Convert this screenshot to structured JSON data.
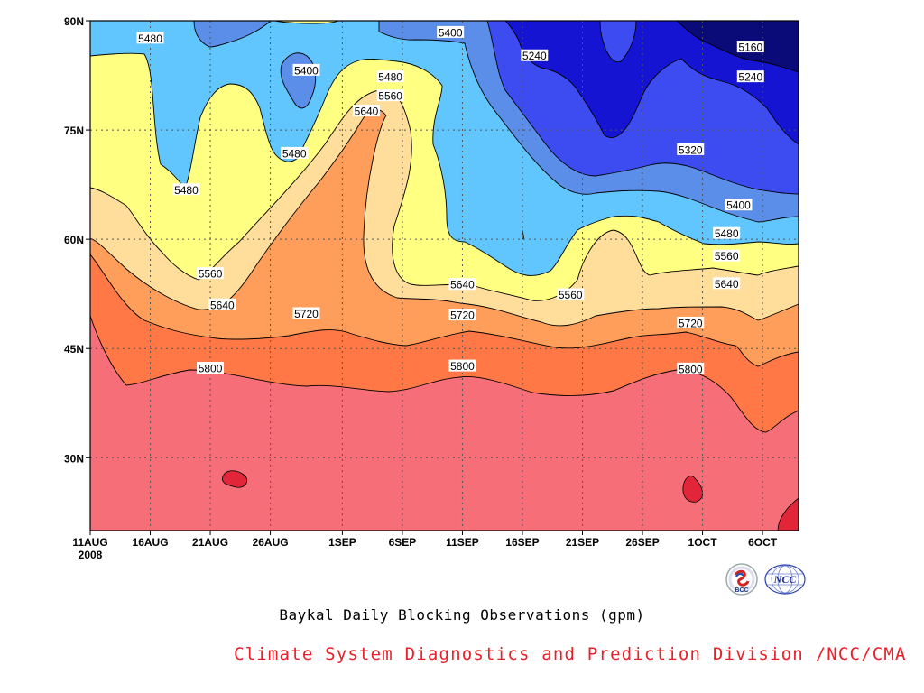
{
  "chart_data": {
    "type": "contour",
    "title": "Baykal Daily Blocking Observations (gpm)",
    "x_ticks": [
      "11AUG",
      "16AUG",
      "21AUG",
      "26AUG",
      "1SEP",
      "6SEP",
      "11SEP",
      "16SEP",
      "21SEP",
      "26SEP",
      "1OCT",
      "6OCT"
    ],
    "x_year": "2008",
    "y_ticks": [
      "30N",
      "45N",
      "60N",
      "75N",
      "90N"
    ],
    "y_tick_values": [
      30,
      45,
      60,
      75,
      90
    ],
    "xlim": [
      "2008-08-11",
      "2008-10-09"
    ],
    "ylim": [
      20,
      90
    ],
    "contour_levels": [
      5160,
      5240,
      5320,
      5400,
      5480,
      5560,
      5640,
      5720,
      5800,
      5880
    ],
    "contour_labels": [
      {
        "text": "5480",
        "x": "2008-08-16",
        "y": 87.6
      },
      {
        "text": "5400",
        "x": "2008-08-29",
        "y": 83.2
      },
      {
        "text": "5400",
        "x": "2008-09-10",
        "y": 88.4
      },
      {
        "text": "5240",
        "x": "2008-09-17",
        "y": 85.2
      },
      {
        "text": "5160",
        "x": "2008-10-05",
        "y": 86.4
      },
      {
        "text": "5240",
        "x": "2008-10-05",
        "y": 82.3
      },
      {
        "text": "5480",
        "x": "2008-09-05",
        "y": 82.3
      },
      {
        "text": "5560",
        "x": "2008-09-05",
        "y": 79.7
      },
      {
        "text": "5640",
        "x": "2008-09-03",
        "y": 77.6
      },
      {
        "text": "5480",
        "x": "2008-08-28",
        "y": 71.8
      },
      {
        "text": "5480",
        "x": "2008-08-19",
        "y": 66.8
      },
      {
        "text": "5320",
        "x": "2008-09-30",
        "y": 72.3
      },
      {
        "text": "5400",
        "x": "2008-10-04",
        "y": 64.7
      },
      {
        "text": "5480",
        "x": "2008-10-03",
        "y": 60.8
      },
      {
        "text": "5560",
        "x": "2008-10-03",
        "y": 57.7
      },
      {
        "text": "5640",
        "x": "2008-10-03",
        "y": 53.9
      },
      {
        "text": "5560",
        "x": "2008-08-21",
        "y": 55.3
      },
      {
        "text": "5640",
        "x": "2008-08-22",
        "y": 51.0
      },
      {
        "text": "5720",
        "x": "2008-08-29",
        "y": 49.8
      },
      {
        "text": "5640",
        "x": "2008-09-11",
        "y": 53.8
      },
      {
        "text": "5560",
        "x": "2008-09-20",
        "y": 52.4
      },
      {
        "text": "5720",
        "x": "2008-09-11",
        "y": 49.6
      },
      {
        "text": "5720",
        "x": "2008-09-30",
        "y": 48.5
      },
      {
        "text": "5800",
        "x": "2008-08-21",
        "y": 42.3
      },
      {
        "text": "5800",
        "x": "2008-09-11",
        "y": 42.6
      },
      {
        "text": "5800",
        "x": "2008-09-30",
        "y": 42.2
      }
    ]
  },
  "caption": "Baykal Daily Blocking Observations (gpm)",
  "credit": "Climate System Diagnostics and Prediction Division /NCC/CMA",
  "logos": {
    "left_text": "BCC",
    "right_text": "NCC"
  },
  "colors": {
    "band_5880": "#e02638",
    "band_5800": "#f56e78",
    "band_5720": "#ff7846",
    "band_5640": "#ff9e5a",
    "band_5560": "#ffdd9a",
    "band_5480": "#ffff82",
    "band_5400": "#61c6fe",
    "band_5320": "#5a8ee8",
    "band_5240": "#3c4cf0",
    "band_5160": "#1414d2",
    "band_lt5160": "#0a0a78",
    "credit": "#e8202a"
  }
}
